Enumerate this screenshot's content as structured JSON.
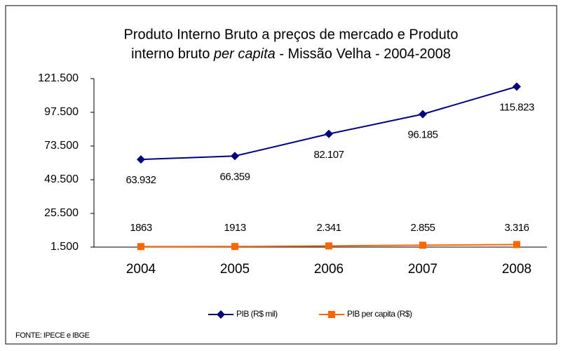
{
  "chart_data": {
    "type": "line",
    "title": [
      "Produto Interno Bruto a preços de mercado  e   Produto",
      "interno bruto ",
      "per capita",
      " - Missão Velha - 2004-2008"
    ],
    "categories": [
      "2004",
      "2005",
      "2006",
      "2007",
      "2008"
    ],
    "series": [
      {
        "name": "PIB (R$ mil)",
        "color": "#000080",
        "marker": "diamond",
        "values": [
          63932,
          66359,
          82107,
          96185,
          115823
        ],
        "value_labels": [
          "63.932",
          "66.359",
          "82.107",
          "96.185",
          "115.823"
        ]
      },
      {
        "name": "PIB per capita (R$)",
        "color": "#ff6600",
        "marker": "square",
        "values": [
          1863,
          1913,
          2341,
          2855,
          3316
        ],
        "value_labels": [
          "1863",
          "1913",
          "2.341",
          "2.855",
          "3.316"
        ]
      }
    ],
    "ylim": [
      1500,
      121500
    ],
    "yticks": [
      {
        "value": 1500,
        "label": "1.500"
      },
      {
        "value": 25500,
        "label": "25.500"
      },
      {
        "value": 49500,
        "label": "49.500"
      },
      {
        "value": 73500,
        "label": "73.500"
      },
      {
        "value": 97500,
        "label": "97.500"
      },
      {
        "value": 121500,
        "label": "121.500"
      }
    ],
    "grid": false,
    "legend": "bottom",
    "source": "FONTE: IPECE e IBGE"
  }
}
